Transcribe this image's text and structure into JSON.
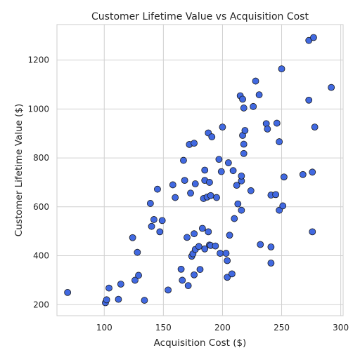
{
  "chart_data": {
    "type": "scatter",
    "title": "Customer Lifetime Value vs Acquisition Cost",
    "xlabel": "Acquisition Cost ($)",
    "ylabel": "Customer Lifetime Value ($)",
    "xlim": [
      60,
      302
    ],
    "ylim": [
      155,
      1345
    ],
    "x_ticks": [
      100,
      150,
      200,
      250,
      300
    ],
    "y_ticks": [
      200,
      400,
      600,
      800,
      1000,
      1200
    ],
    "grid": true,
    "point_color": "#4169e1",
    "edge_color": "#1a1a1a",
    "points": [
      [
        69,
        250
      ],
      [
        101,
        208
      ],
      [
        102,
        220
      ],
      [
        104,
        268
      ],
      [
        112,
        222
      ],
      [
        114,
        284
      ],
      [
        124,
        474
      ],
      [
        126,
        300
      ],
      [
        128,
        414
      ],
      [
        129,
        320
      ],
      [
        134,
        218
      ],
      [
        139,
        614
      ],
      [
        140,
        520
      ],
      [
        142,
        548
      ],
      [
        145,
        672
      ],
      [
        147,
        498
      ],
      [
        149,
        544
      ],
      [
        154,
        260
      ],
      [
        158,
        690
      ],
      [
        160,
        638
      ],
      [
        165,
        345
      ],
      [
        166,
        300
      ],
      [
        167,
        790
      ],
      [
        168,
        708
      ],
      [
        170,
        475
      ],
      [
        171,
        278
      ],
      [
        172,
        855
      ],
      [
        173,
        656
      ],
      [
        174,
        398
      ],
      [
        175,
        408
      ],
      [
        176,
        860
      ],
      [
        176,
        490
      ],
      [
        176,
        322
      ],
      [
        177,
        694
      ],
      [
        177,
        426
      ],
      [
        180,
        438
      ],
      [
        181,
        344
      ],
      [
        183,
        512
      ],
      [
        184,
        634
      ],
      [
        185,
        750
      ],
      [
        185,
        708
      ],
      [
        185,
        428
      ],
      [
        187,
        640
      ],
      [
        188,
        902
      ],
      [
        188,
        498
      ],
      [
        189,
        700
      ],
      [
        189,
        444
      ],
      [
        190,
        646
      ],
      [
        190,
        442
      ],
      [
        191,
        886
      ],
      [
        194,
        440
      ],
      [
        195,
        638
      ],
      [
        197,
        794
      ],
      [
        198,
        410
      ],
      [
        199,
        744
      ],
      [
        200,
        926
      ],
      [
        203,
        410
      ],
      [
        204,
        312
      ],
      [
        204,
        380
      ],
      [
        205,
        780
      ],
      [
        206,
        484
      ],
      [
        208,
        326
      ],
      [
        209,
        748
      ],
      [
        210,
        552
      ],
      [
        212,
        688
      ],
      [
        213,
        612
      ],
      [
        215,
        1054
      ],
      [
        216,
        706
      ],
      [
        216,
        726
      ],
      [
        216,
        586
      ],
      [
        217,
        1040
      ],
      [
        217,
        892
      ],
      [
        218,
        856
      ],
      [
        218,
        818
      ],
      [
        218,
        1004
      ],
      [
        219,
        912
      ],
      [
        224,
        666
      ],
      [
        226,
        1010
      ],
      [
        228,
        1114
      ],
      [
        231,
        1058
      ],
      [
        232,
        446
      ],
      [
        237,
        940
      ],
      [
        238,
        918
      ],
      [
        241,
        648
      ],
      [
        241,
        436
      ],
      [
        241,
        370
      ],
      [
        245,
        650
      ],
      [
        246,
        942
      ],
      [
        248,
        866
      ],
      [
        248,
        586
      ],
      [
        250,
        1164
      ],
      [
        251,
        604
      ],
      [
        252,
        722
      ],
      [
        268,
        732
      ],
      [
        273,
        1036
      ],
      [
        273,
        1280
      ],
      [
        276,
        742
      ],
      [
        276,
        498
      ],
      [
        277,
        1292
      ],
      [
        278,
        926
      ],
      [
        292,
        1088
      ]
    ]
  }
}
